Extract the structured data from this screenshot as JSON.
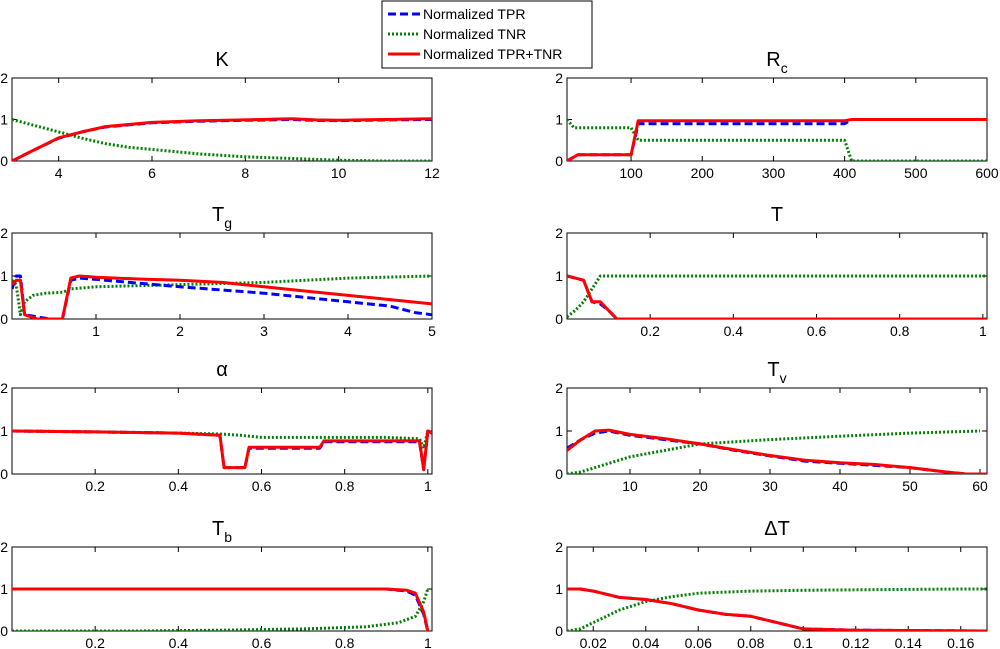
{
  "legend": {
    "entries": [
      {
        "label": "Normalized TPR",
        "color": "#0000ff",
        "dash": "dashed"
      },
      {
        "label": "Normalized TNR",
        "color": "#008000",
        "dash": "dotted"
      },
      {
        "label": "Normalized TPR+TNR",
        "color": "#ff0000",
        "dash": "solid"
      }
    ]
  },
  "chart_data": [
    {
      "type": "line",
      "title": "K",
      "title_sub": "",
      "xlim": [
        3,
        12
      ],
      "ylim": [
        0,
        2
      ],
      "xticks": [
        4,
        6,
        8,
        10,
        12
      ],
      "xtick_labels": [
        "4",
        "6",
        "8",
        "10",
        "12"
      ],
      "yticks": [
        0,
        1,
        2
      ],
      "ytick_labels": [
        "0",
        "1",
        "2"
      ],
      "series": [
        {
          "name": "Normalized TNR",
          "x": [
            3,
            3.5,
            4,
            4.5,
            5,
            5.5,
            6,
            7,
            8,
            9,
            10,
            10.5,
            11,
            12
          ],
          "y": [
            1.0,
            0.85,
            0.7,
            0.55,
            0.42,
            0.33,
            0.28,
            0.17,
            0.1,
            0.06,
            0.02,
            0.01,
            0.0,
            0.0
          ]
        },
        {
          "name": "Normalized TPR",
          "x": [
            3,
            3.5,
            4,
            4.5,
            5,
            6,
            7,
            8,
            9,
            9.5,
            10,
            11,
            12
          ],
          "y": [
            0.0,
            0.28,
            0.55,
            0.7,
            0.82,
            0.92,
            0.96,
            0.98,
            1.0,
            0.98,
            0.97,
            0.99,
            1.0
          ]
        },
        {
          "name": "Normalized TPR+TNR",
          "x": [
            3,
            3.5,
            4,
            4.5,
            5,
            6,
            7,
            8,
            9,
            9.5,
            10,
            11,
            12
          ],
          "y": [
            0.0,
            0.28,
            0.56,
            0.7,
            0.83,
            0.93,
            0.97,
            0.99,
            1.02,
            0.99,
            0.98,
            1.0,
            1.02
          ]
        }
      ]
    },
    {
      "type": "line",
      "title": "R",
      "title_sub": "c",
      "xlim": [
        10,
        600
      ],
      "ylim": [
        0,
        2
      ],
      "xticks": [
        100,
        200,
        300,
        400,
        500,
        600
      ],
      "xtick_labels": [
        "100",
        "200",
        "300",
        "400",
        "500",
        "600"
      ],
      "yticks": [
        0,
        1,
        2
      ],
      "ytick_labels": [
        "0",
        "1",
        "2"
      ],
      "series": [
        {
          "name": "Normalized TNR",
          "x": [
            10,
            20,
            30,
            100,
            110,
            400,
            410,
            600
          ],
          "y": [
            1.0,
            0.8,
            0.8,
            0.8,
            0.5,
            0.5,
            0.0,
            0.0
          ]
        },
        {
          "name": "Normalized TPR",
          "x": [
            10,
            25,
            100,
            110,
            400,
            410,
            600
          ],
          "y": [
            0.0,
            0.15,
            0.15,
            0.9,
            0.9,
            1.0,
            1.0
          ]
        },
        {
          "name": "Normalized TPR+TNR",
          "x": [
            10,
            25,
            100,
            110,
            400,
            410,
            600
          ],
          "y": [
            0.0,
            0.15,
            0.15,
            0.97,
            0.97,
            1.0,
            1.0
          ]
        }
      ]
    },
    {
      "type": "line",
      "title": "T",
      "title_sub": "g",
      "xlim": [
        0,
        5
      ],
      "ylim": [
        0,
        2
      ],
      "xticks": [
        1,
        2,
        3,
        4,
        5
      ],
      "xtick_labels": [
        "1",
        "2",
        "3",
        "4",
        "5"
      ],
      "yticks": [
        0,
        1,
        2
      ],
      "ytick_labels": [
        "0",
        "1",
        "2"
      ],
      "series": [
        {
          "name": "Normalized TNR",
          "x": [
            0,
            0.05,
            0.1,
            0.15,
            0.25,
            0.4,
            0.6,
            0.7,
            1,
            2,
            3,
            4,
            5
          ],
          "y": [
            0.9,
            0.8,
            0.1,
            0.4,
            0.55,
            0.6,
            0.62,
            0.7,
            0.75,
            0.8,
            0.85,
            0.95,
            1.0
          ]
        },
        {
          "name": "Normalized TPR",
          "x": [
            0,
            0.05,
            0.1,
            0.15,
            0.3,
            0.45,
            0.6,
            0.7,
            0.8,
            1,
            1.4,
            2,
            3,
            3.5,
            4,
            4.5,
            4.8,
            5
          ],
          "y": [
            0.7,
            1.0,
            1.0,
            0.1,
            0.05,
            0.0,
            0.0,
            0.9,
            0.95,
            0.92,
            0.85,
            0.75,
            0.6,
            0.5,
            0.4,
            0.3,
            0.15,
            0.1
          ]
        },
        {
          "name": "Normalized TPR+TNR",
          "x": [
            0,
            0.05,
            0.1,
            0.15,
            0.3,
            0.6,
            0.7,
            0.8,
            1,
            1.5,
            2,
            2.5,
            3,
            3.5,
            4,
            4.5,
            5
          ],
          "y": [
            0.8,
            0.9,
            0.9,
            0.1,
            0.0,
            0.0,
            0.95,
            1.0,
            0.97,
            0.93,
            0.9,
            0.85,
            0.75,
            0.65,
            0.55,
            0.45,
            0.35
          ]
        }
      ]
    },
    {
      "type": "line",
      "title": "T",
      "title_sub": "",
      "xlim": [
        0,
        1.01
      ],
      "ylim": [
        0,
        2
      ],
      "xticks": [
        0.2,
        0.4,
        0.6,
        0.8,
        1
      ],
      "xtick_labels": [
        "0.2",
        "0.4",
        "0.6",
        "0.8",
        "1"
      ],
      "yticks": [
        0,
        1,
        2
      ],
      "ytick_labels": [
        "0",
        "1",
        "2"
      ],
      "series": [
        {
          "name": "Normalized TNR",
          "x": [
            0,
            0.02,
            0.04,
            0.06,
            0.08,
            0.1,
            1.01
          ],
          "y": [
            0.05,
            0.2,
            0.4,
            0.7,
            1.0,
            1.0,
            1.0
          ]
        },
        {
          "name": "Normalized TPR",
          "x": [
            0,
            0.02,
            0.04,
            0.06,
            0.08,
            0.1,
            0.12,
            1.01
          ],
          "y": [
            1.0,
            0.95,
            0.9,
            0.4,
            0.35,
            0.2,
            0.0,
            0.0
          ]
        },
        {
          "name": "Normalized TPR+TNR",
          "x": [
            0,
            0.02,
            0.04,
            0.06,
            0.08,
            0.1,
            0.12,
            1.01
          ],
          "y": [
            1.0,
            0.95,
            0.9,
            0.4,
            0.4,
            0.2,
            0.0,
            0.0
          ]
        }
      ]
    },
    {
      "type": "line",
      "title": "α",
      "title_sub": "",
      "xlim": [
        0,
        1.01
      ],
      "ylim": [
        0,
        2
      ],
      "xticks": [
        0.2,
        0.4,
        0.6,
        0.8,
        1
      ],
      "xtick_labels": [
        "0.2",
        "0.4",
        "0.6",
        "0.8",
        "1"
      ],
      "yticks": [
        0,
        1,
        2
      ],
      "ytick_labels": [
        "0",
        "1",
        "2"
      ],
      "series": [
        {
          "name": "Normalized TNR",
          "x": [
            0,
            0.2,
            0.4,
            0.5,
            0.55,
            0.6,
            0.75,
            0.9,
            0.98,
            0.99,
            1.0,
            1.01
          ],
          "y": [
            1.0,
            0.98,
            0.95,
            0.93,
            0.9,
            0.85,
            0.85,
            0.85,
            0.82,
            0.6,
            1.0,
            0.95
          ]
        },
        {
          "name": "Normalized TPR",
          "x": [
            0,
            0.2,
            0.4,
            0.5,
            0.51,
            0.56,
            0.57,
            0.74,
            0.75,
            0.98,
            0.99,
            1.0,
            1.01
          ],
          "y": [
            1.0,
            0.98,
            0.95,
            0.9,
            0.15,
            0.15,
            0.6,
            0.6,
            0.75,
            0.75,
            0.1,
            1.0,
            0.95
          ]
        },
        {
          "name": "Normalized TPR+TNR",
          "x": [
            0,
            0.2,
            0.4,
            0.5,
            0.51,
            0.56,
            0.57,
            0.74,
            0.75,
            0.98,
            0.99,
            1.0,
            1.01
          ],
          "y": [
            1.0,
            0.98,
            0.95,
            0.9,
            0.15,
            0.15,
            0.62,
            0.62,
            0.77,
            0.77,
            0.1,
            1.0,
            0.95
          ]
        }
      ]
    },
    {
      "type": "line",
      "title": "T",
      "title_sub": "v",
      "xlim": [
        1,
        61
      ],
      "ylim": [
        0,
        2
      ],
      "xticks": [
        10,
        20,
        30,
        40,
        50,
        60
      ],
      "xtick_labels": [
        "10",
        "20",
        "30",
        "40",
        "50",
        "60"
      ],
      "yticks": [
        0,
        1,
        2
      ],
      "ytick_labels": [
        "0",
        "1",
        "2"
      ],
      "series": [
        {
          "name": "Normalized TNR",
          "x": [
            1,
            3,
            5,
            7,
            10,
            15,
            20,
            30,
            40,
            50,
            60
          ],
          "y": [
            0.0,
            0.05,
            0.15,
            0.25,
            0.4,
            0.55,
            0.7,
            0.8,
            0.88,
            0.95,
            1.0
          ]
        },
        {
          "name": "Normalized TPR",
          "x": [
            1,
            3,
            5,
            7,
            10,
            15,
            20,
            25,
            30,
            35,
            40,
            45,
            50,
            55,
            58,
            61
          ],
          "y": [
            0.6,
            0.8,
            0.95,
            1.0,
            0.9,
            0.8,
            0.7,
            0.55,
            0.42,
            0.3,
            0.25,
            0.2,
            0.15,
            0.05,
            0.0,
            0.0
          ]
        },
        {
          "name": "Normalized TPR+TNR",
          "x": [
            1,
            3,
            5,
            7,
            10,
            15,
            20,
            25,
            30,
            35,
            40,
            45,
            50,
            55,
            58,
            61
          ],
          "y": [
            0.55,
            0.8,
            1.0,
            1.02,
            0.92,
            0.82,
            0.7,
            0.56,
            0.43,
            0.32,
            0.26,
            0.22,
            0.15,
            0.05,
            0.0,
            0.0
          ]
        }
      ]
    },
    {
      "type": "line",
      "title": "T",
      "title_sub": "b",
      "xlim": [
        0,
        1.01
      ],
      "ylim": [
        0,
        2
      ],
      "xticks": [
        0.2,
        0.4,
        0.6,
        0.8,
        1
      ],
      "xtick_labels": [
        "0.2",
        "0.4",
        "0.6",
        "0.8",
        "1"
      ],
      "yticks": [
        0,
        1,
        2
      ],
      "ytick_labels": [
        "0",
        "1",
        "2"
      ],
      "series": [
        {
          "name": "Normalized TNR",
          "x": [
            0,
            0.3,
            0.5,
            0.7,
            0.85,
            0.93,
            0.97,
            0.99,
            1.0
          ],
          "y": [
            0.0,
            0.0,
            0.02,
            0.05,
            0.1,
            0.2,
            0.35,
            0.7,
            1.0
          ]
        },
        {
          "name": "Normalized TPR",
          "x": [
            0,
            0.5,
            0.9,
            0.95,
            0.97,
            0.99,
            1.0
          ],
          "y": [
            1.0,
            1.0,
            1.0,
            0.95,
            0.85,
            0.4,
            0.0
          ]
        },
        {
          "name": "Normalized TPR+TNR",
          "x": [
            0,
            0.5,
            0.9,
            0.95,
            0.97,
            0.99,
            1.0
          ],
          "y": [
            1.0,
            1.0,
            1.0,
            0.97,
            0.9,
            0.45,
            0.0
          ]
        }
      ]
    },
    {
      "type": "line",
      "title": "ΔT",
      "title_sub": "",
      "xlim": [
        0.01,
        0.17
      ],
      "ylim": [
        0,
        2
      ],
      "xticks": [
        0.02,
        0.04,
        0.06,
        0.08,
        0.1,
        0.12,
        0.14,
        0.16
      ],
      "xtick_labels": [
        "0.02",
        "0.04",
        "0.06",
        "0.08",
        "0.1",
        "0.12",
        "0.14",
        "0.16"
      ],
      "yticks": [
        0,
        1,
        2
      ],
      "ytick_labels": [
        "0",
        "1",
        "2"
      ],
      "series": [
        {
          "name": "Normalized TNR",
          "x": [
            0.01,
            0.015,
            0.02,
            0.03,
            0.04,
            0.05,
            0.06,
            0.08,
            0.1,
            0.12,
            0.14,
            0.16,
            0.17
          ],
          "y": [
            0.0,
            0.05,
            0.2,
            0.5,
            0.7,
            0.82,
            0.9,
            0.95,
            0.97,
            0.98,
            0.99,
            1.0,
            1.0
          ]
        },
        {
          "name": "Normalized TPR",
          "x": [
            0.01,
            0.015,
            0.02,
            0.03,
            0.04,
            0.05,
            0.06,
            0.07,
            0.08,
            0.09,
            0.1,
            0.12,
            0.17
          ],
          "y": [
            1.0,
            1.0,
            0.95,
            0.8,
            0.75,
            0.65,
            0.5,
            0.4,
            0.35,
            0.2,
            0.05,
            0.02,
            0.0
          ]
        },
        {
          "name": "Normalized TPR+TNR",
          "x": [
            0.01,
            0.015,
            0.02,
            0.03,
            0.04,
            0.05,
            0.06,
            0.07,
            0.08,
            0.09,
            0.1,
            0.12,
            0.17
          ],
          "y": [
            1.0,
            1.0,
            0.95,
            0.8,
            0.75,
            0.65,
            0.5,
            0.4,
            0.35,
            0.2,
            0.05,
            0.02,
            0.0
          ]
        }
      ]
    }
  ]
}
